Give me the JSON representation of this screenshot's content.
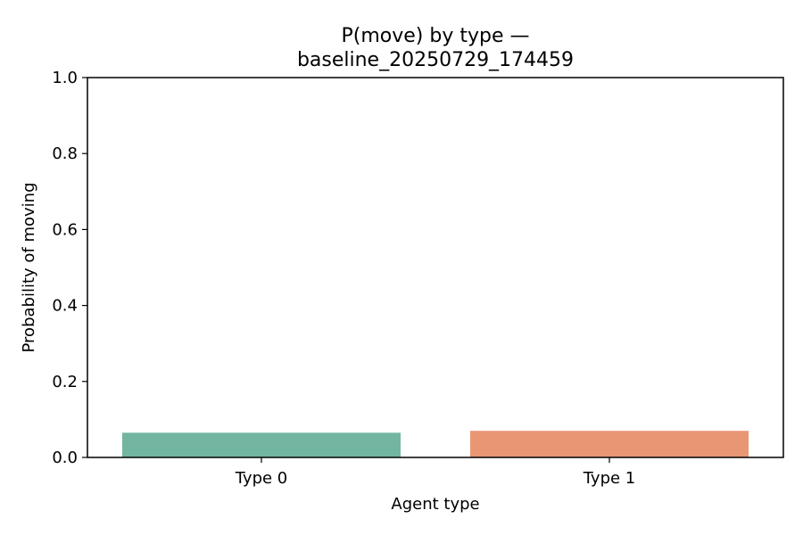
{
  "chart_data": {
    "type": "bar",
    "title": "P(move) by type —",
    "subtitle": "baseline_20250729_174459",
    "xlabel": "Agent type",
    "ylabel": "Probability of moving",
    "categories": [
      "Type 0",
      "Type 1"
    ],
    "values": [
      0.065,
      0.07
    ],
    "colors": [
      "#72b6a1",
      "#e99675"
    ],
    "ylim": [
      0,
      1.0
    ],
    "yticks": [
      "0.0",
      "0.2",
      "0.4",
      "0.6",
      "0.8",
      "1.0"
    ],
    "grid": false,
    "legend": false
  }
}
